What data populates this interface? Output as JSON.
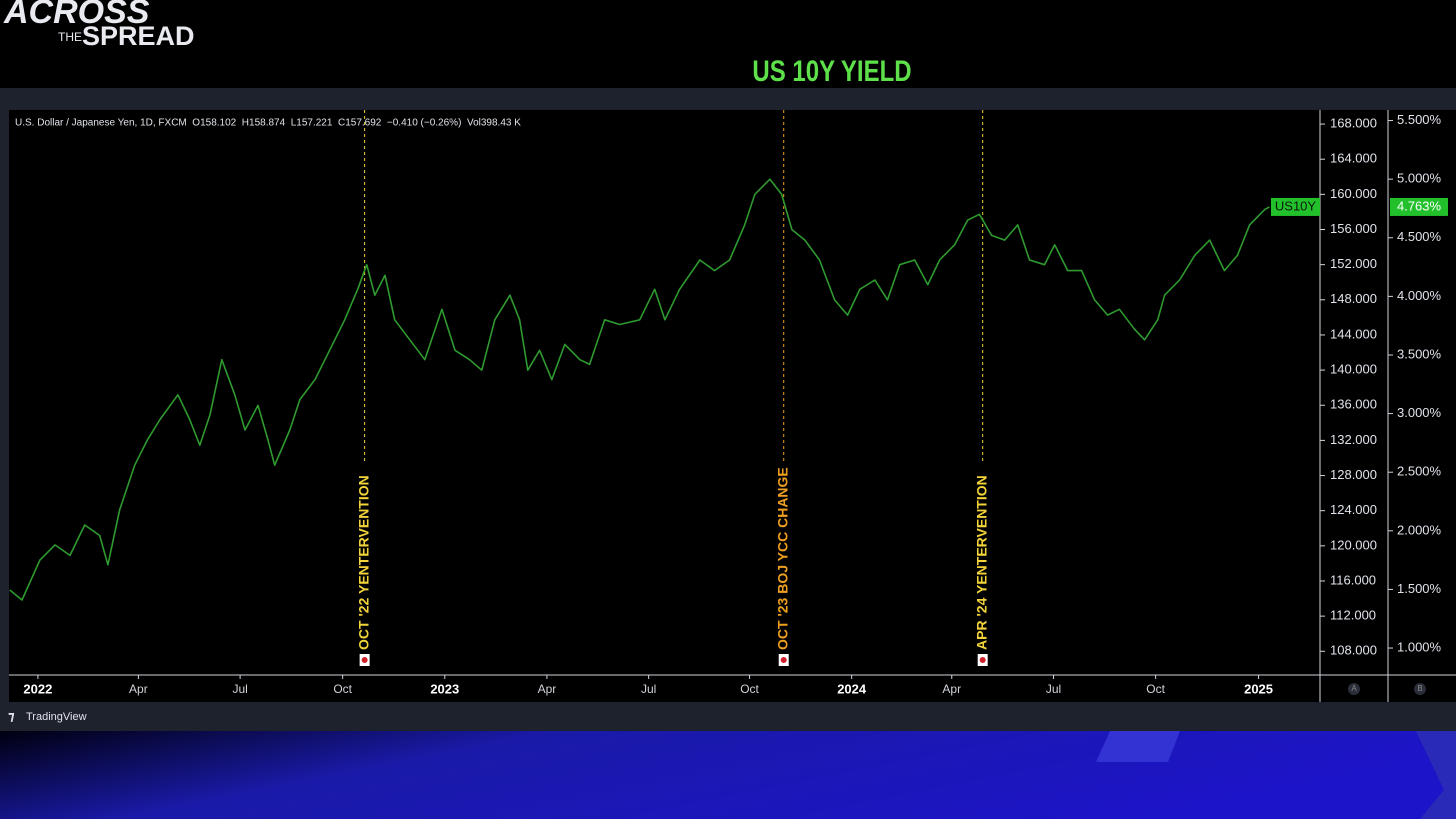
{
  "brand": {
    "line1": "ACROSS",
    "line2a": "THE",
    "line2b": "SPREAD"
  },
  "footer": {
    "logo": "TradingView"
  },
  "axis_badges": [
    "A",
    "B"
  ],
  "chart_data": {
    "type": "line",
    "title": "US 10Y YIELD",
    "header_info": "U.S. Dollar / Japanese Yen, 1D, FXCM  O158.102  H158.874  L157.221  C157.692  −0.410 (−0.26%)  Vol398.43 K",
    "x": [
      2021.931,
      2021.961,
      2022.005,
      2022.042,
      2022.079,
      2022.115,
      2022.152,
      2022.172,
      2022.201,
      2022.238,
      2022.27,
      2022.3,
      2022.344,
      2022.373,
      2022.398,
      2022.423,
      2022.452,
      2022.484,
      2022.509,
      2022.541,
      2022.565,
      2022.582,
      2022.619,
      2022.644,
      2022.681,
      2022.717,
      2022.754,
      2022.786,
      2022.808,
      2022.828,
      2022.853,
      2022.877,
      2022.914,
      2022.951,
      2022.993,
      2023.025,
      2023.061,
      2023.091,
      2023.123,
      2023.16,
      2023.184,
      2023.204,
      2023.233,
      2023.263,
      2023.295,
      2023.332,
      2023.356,
      2023.393,
      2023.43,
      2023.479,
      2023.516,
      2023.541,
      2023.577,
      2023.627,
      2023.663,
      2023.7,
      2023.737,
      2023.762,
      2023.799,
      2023.828,
      2023.853,
      2023.885,
      2023.921,
      2023.958,
      2023.99,
      2024.02,
      2024.057,
      2024.088,
      2024.118,
      2024.155,
      2024.187,
      2024.216,
      2024.253,
      2024.285,
      2024.314,
      2024.344,
      2024.376,
      2024.408,
      2024.437,
      2024.474,
      2024.499,
      2024.531,
      2024.565,
      2024.597,
      2024.629,
      2024.658,
      2024.695,
      2024.72,
      2024.752,
      2024.769,
      2024.806,
      2024.843,
      2024.88,
      2024.916,
      2024.948,
      2024.978,
      2025.015,
      2025.027
    ],
    "series": [
      {
        "name": "US10Y",
        "color": "#2f9a2f",
        "axis": "y2",
        "values": [
          1.495,
          1.41,
          1.75,
          1.88,
          1.79,
          2.05,
          1.96,
          1.71,
          2.18,
          2.56,
          2.78,
          2.95,
          3.16,
          2.95,
          2.73,
          2.99,
          3.46,
          3.16,
          2.86,
          3.07,
          2.78,
          2.56,
          2.86,
          3.12,
          3.29,
          3.54,
          3.8,
          4.06,
          4.27,
          4.01,
          4.18,
          3.8,
          3.63,
          3.46,
          3.89,
          3.54,
          3.46,
          3.37,
          3.8,
          4.01,
          3.8,
          3.37,
          3.54,
          3.29,
          3.59,
          3.46,
          3.42,
          3.8,
          3.76,
          3.8,
          4.06,
          3.8,
          4.06,
          4.31,
          4.22,
          4.31,
          4.61,
          4.87,
          5.0,
          4.87,
          4.57,
          4.48,
          4.31,
          3.97,
          3.84,
          4.06,
          4.14,
          3.97,
          4.27,
          4.31,
          4.1,
          4.31,
          4.44,
          4.65,
          4.7,
          4.52,
          4.48,
          4.61,
          4.31,
          4.27,
          4.44,
          4.22,
          4.22,
          3.97,
          3.84,
          3.89,
          3.72,
          3.63,
          3.8,
          4.01,
          4.14,
          4.35,
          4.48,
          4.22,
          4.35,
          4.61,
          4.74,
          4.763
        ],
        "value_labels": [
          null,
          null,
          null,
          null,
          null,
          null,
          null,
          null,
          null,
          null,
          null,
          null,
          null,
          null,
          null,
          null,
          null,
          null,
          null,
          null,
          null,
          null,
          null,
          null,
          null,
          null,
          null,
          null,
          null,
          null,
          null,
          null,
          null,
          null,
          null,
          null,
          null,
          null,
          null,
          null,
          null,
          null,
          null,
          null,
          null,
          null,
          null,
          null,
          null,
          null,
          null,
          null,
          null,
          null,
          null,
          null,
          null,
          null,
          null,
          null,
          null,
          null,
          null,
          null,
          null,
          null,
          null,
          null,
          null,
          null,
          null,
          null,
          null,
          null,
          null,
          null,
          null,
          null,
          null,
          null,
          null,
          null,
          null,
          null,
          null,
          null,
          null,
          null,
          null,
          null,
          null,
          null,
          null,
          null,
          null,
          null,
          null,
          "4.763%"
        ]
      }
    ],
    "events": [
      {
        "x": 2022.803,
        "label": "OCT '22  YENTERVENTION",
        "color": "#f2d43a"
      },
      {
        "x": 2023.833,
        "label": "OCT '23  BOJ YCC CHANGE",
        "color": "#f0a020"
      },
      {
        "x": 2024.322,
        "label": "APR '24  YENTERVENTION",
        "color": "#f2d43a"
      }
    ],
    "xlim": [
      2021.929,
      2025.151
    ],
    "xticks": [
      2022,
      {
        "value": 2022.247,
        "label": "Apr"
      },
      {
        "value": 2022.497,
        "label": "Jul"
      },
      {
        "value": 2022.749,
        "label": "Oct"
      },
      2023,
      {
        "value": 2023.251,
        "label": "Apr"
      },
      {
        "value": 2023.501,
        "label": "Jul"
      },
      {
        "value": 2023.749,
        "label": "Oct"
      },
      2024,
      {
        "value": 2024.246,
        "label": "Apr"
      },
      {
        "value": 2024.496,
        "label": "Jul"
      },
      {
        "value": 2024.747,
        "label": "Oct"
      },
      2025
    ],
    "ylim": [
      105.3,
      169.6
    ],
    "yticks": [
      {
        "value": 168,
        "label": "168.000"
      },
      {
        "value": 164,
        "label": "164.000"
      },
      {
        "value": 160,
        "label": "160.000"
      },
      {
        "value": 156,
        "label": "156.000"
      },
      {
        "value": 152,
        "label": "152.000"
      },
      {
        "value": 148,
        "label": "148.000"
      },
      {
        "value": 144,
        "label": "144.000"
      },
      {
        "value": 140,
        "label": "140.000"
      },
      {
        "value": 136,
        "label": "136.000"
      },
      {
        "value": 132,
        "label": "132.000"
      },
      {
        "value": 128,
        "label": "128.000"
      },
      {
        "value": 124,
        "label": "124.000"
      },
      {
        "value": 120,
        "label": "120.000"
      },
      {
        "value": 116,
        "label": "116.000"
      },
      {
        "value": 112,
        "label": "112.000"
      },
      {
        "value": 108,
        "label": "108.000"
      }
    ],
    "y2lim": [
      0.77,
      5.59
    ],
    "y2ticks": [
      {
        "value": 5.5,
        "label": "5.500%"
      },
      {
        "value": 5,
        "label": "5.000%"
      },
      {
        "value": 4.5,
        "label": "4.500%"
      },
      {
        "value": 4,
        "label": "4.000%"
      },
      {
        "value": 3.5,
        "label": "3.500%"
      },
      {
        "value": 3,
        "label": "3.000%"
      },
      {
        "value": 2.5,
        "label": "2.500%"
      },
      {
        "value": 2,
        "label": "2.000%"
      },
      {
        "value": 1.5,
        "label": "1.500%"
      },
      {
        "value": 1,
        "label": "1.000%"
      }
    ],
    "grid": false
  }
}
